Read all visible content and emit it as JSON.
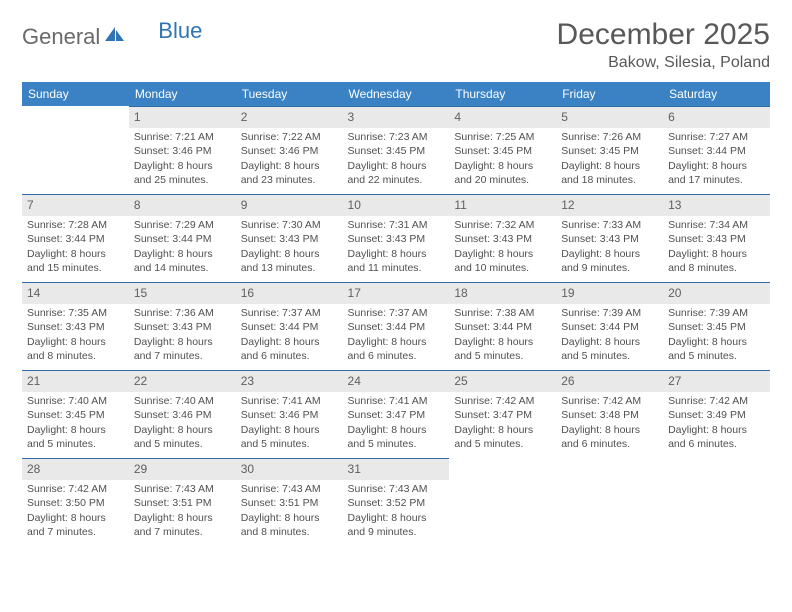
{
  "brand": {
    "part1": "General",
    "part2": "Blue"
  },
  "title": "December 2025",
  "location": "Bakow, Silesia, Poland",
  "colors": {
    "header_bg": "#3a82c4",
    "header_text": "#ffffff",
    "daynum_bg": "#e9e9e9",
    "daynum_border": "#2f6aa8",
    "text": "#505050",
    "brand_gray": "#6a6a6a",
    "brand_blue": "#2f74b5"
  },
  "weekdays": [
    "Sunday",
    "Monday",
    "Tuesday",
    "Wednesday",
    "Thursday",
    "Friday",
    "Saturday"
  ],
  "weeks": [
    [
      null,
      {
        "n": "1",
        "sr": "Sunrise: 7:21 AM",
        "ss": "Sunset: 3:46 PM",
        "dl1": "Daylight: 8 hours",
        "dl2": "and 25 minutes."
      },
      {
        "n": "2",
        "sr": "Sunrise: 7:22 AM",
        "ss": "Sunset: 3:46 PM",
        "dl1": "Daylight: 8 hours",
        "dl2": "and 23 minutes."
      },
      {
        "n": "3",
        "sr": "Sunrise: 7:23 AM",
        "ss": "Sunset: 3:45 PM",
        "dl1": "Daylight: 8 hours",
        "dl2": "and 22 minutes."
      },
      {
        "n": "4",
        "sr": "Sunrise: 7:25 AM",
        "ss": "Sunset: 3:45 PM",
        "dl1": "Daylight: 8 hours",
        "dl2": "and 20 minutes."
      },
      {
        "n": "5",
        "sr": "Sunrise: 7:26 AM",
        "ss": "Sunset: 3:45 PM",
        "dl1": "Daylight: 8 hours",
        "dl2": "and 18 minutes."
      },
      {
        "n": "6",
        "sr": "Sunrise: 7:27 AM",
        "ss": "Sunset: 3:44 PM",
        "dl1": "Daylight: 8 hours",
        "dl2": "and 17 minutes."
      }
    ],
    [
      {
        "n": "7",
        "sr": "Sunrise: 7:28 AM",
        "ss": "Sunset: 3:44 PM",
        "dl1": "Daylight: 8 hours",
        "dl2": "and 15 minutes."
      },
      {
        "n": "8",
        "sr": "Sunrise: 7:29 AM",
        "ss": "Sunset: 3:44 PM",
        "dl1": "Daylight: 8 hours",
        "dl2": "and 14 minutes."
      },
      {
        "n": "9",
        "sr": "Sunrise: 7:30 AM",
        "ss": "Sunset: 3:43 PM",
        "dl1": "Daylight: 8 hours",
        "dl2": "and 13 minutes."
      },
      {
        "n": "10",
        "sr": "Sunrise: 7:31 AM",
        "ss": "Sunset: 3:43 PM",
        "dl1": "Daylight: 8 hours",
        "dl2": "and 11 minutes."
      },
      {
        "n": "11",
        "sr": "Sunrise: 7:32 AM",
        "ss": "Sunset: 3:43 PM",
        "dl1": "Daylight: 8 hours",
        "dl2": "and 10 minutes."
      },
      {
        "n": "12",
        "sr": "Sunrise: 7:33 AM",
        "ss": "Sunset: 3:43 PM",
        "dl1": "Daylight: 8 hours",
        "dl2": "and 9 minutes."
      },
      {
        "n": "13",
        "sr": "Sunrise: 7:34 AM",
        "ss": "Sunset: 3:43 PM",
        "dl1": "Daylight: 8 hours",
        "dl2": "and 8 minutes."
      }
    ],
    [
      {
        "n": "14",
        "sr": "Sunrise: 7:35 AM",
        "ss": "Sunset: 3:43 PM",
        "dl1": "Daylight: 8 hours",
        "dl2": "and 8 minutes."
      },
      {
        "n": "15",
        "sr": "Sunrise: 7:36 AM",
        "ss": "Sunset: 3:43 PM",
        "dl1": "Daylight: 8 hours",
        "dl2": "and 7 minutes."
      },
      {
        "n": "16",
        "sr": "Sunrise: 7:37 AM",
        "ss": "Sunset: 3:44 PM",
        "dl1": "Daylight: 8 hours",
        "dl2": "and 6 minutes."
      },
      {
        "n": "17",
        "sr": "Sunrise: 7:37 AM",
        "ss": "Sunset: 3:44 PM",
        "dl1": "Daylight: 8 hours",
        "dl2": "and 6 minutes."
      },
      {
        "n": "18",
        "sr": "Sunrise: 7:38 AM",
        "ss": "Sunset: 3:44 PM",
        "dl1": "Daylight: 8 hours",
        "dl2": "and 5 minutes."
      },
      {
        "n": "19",
        "sr": "Sunrise: 7:39 AM",
        "ss": "Sunset: 3:44 PM",
        "dl1": "Daylight: 8 hours",
        "dl2": "and 5 minutes."
      },
      {
        "n": "20",
        "sr": "Sunrise: 7:39 AM",
        "ss": "Sunset: 3:45 PM",
        "dl1": "Daylight: 8 hours",
        "dl2": "and 5 minutes."
      }
    ],
    [
      {
        "n": "21",
        "sr": "Sunrise: 7:40 AM",
        "ss": "Sunset: 3:45 PM",
        "dl1": "Daylight: 8 hours",
        "dl2": "and 5 minutes."
      },
      {
        "n": "22",
        "sr": "Sunrise: 7:40 AM",
        "ss": "Sunset: 3:46 PM",
        "dl1": "Daylight: 8 hours",
        "dl2": "and 5 minutes."
      },
      {
        "n": "23",
        "sr": "Sunrise: 7:41 AM",
        "ss": "Sunset: 3:46 PM",
        "dl1": "Daylight: 8 hours",
        "dl2": "and 5 minutes."
      },
      {
        "n": "24",
        "sr": "Sunrise: 7:41 AM",
        "ss": "Sunset: 3:47 PM",
        "dl1": "Daylight: 8 hours",
        "dl2": "and 5 minutes."
      },
      {
        "n": "25",
        "sr": "Sunrise: 7:42 AM",
        "ss": "Sunset: 3:47 PM",
        "dl1": "Daylight: 8 hours",
        "dl2": "and 5 minutes."
      },
      {
        "n": "26",
        "sr": "Sunrise: 7:42 AM",
        "ss": "Sunset: 3:48 PM",
        "dl1": "Daylight: 8 hours",
        "dl2": "and 6 minutes."
      },
      {
        "n": "27",
        "sr": "Sunrise: 7:42 AM",
        "ss": "Sunset: 3:49 PM",
        "dl1": "Daylight: 8 hours",
        "dl2": "and 6 minutes."
      }
    ],
    [
      {
        "n": "28",
        "sr": "Sunrise: 7:42 AM",
        "ss": "Sunset: 3:50 PM",
        "dl1": "Daylight: 8 hours",
        "dl2": "and 7 minutes."
      },
      {
        "n": "29",
        "sr": "Sunrise: 7:43 AM",
        "ss": "Sunset: 3:51 PM",
        "dl1": "Daylight: 8 hours",
        "dl2": "and 7 minutes."
      },
      {
        "n": "30",
        "sr": "Sunrise: 7:43 AM",
        "ss": "Sunset: 3:51 PM",
        "dl1": "Daylight: 8 hours",
        "dl2": "and 8 minutes."
      },
      {
        "n": "31",
        "sr": "Sunrise: 7:43 AM",
        "ss": "Sunset: 3:52 PM",
        "dl1": "Daylight: 8 hours",
        "dl2": "and 9 minutes."
      },
      null,
      null,
      null
    ]
  ]
}
